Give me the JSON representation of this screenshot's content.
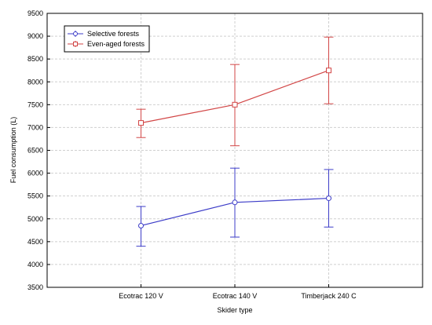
{
  "chart_data": {
    "type": "line",
    "title": "",
    "xlabel": "Skider type",
    "ylabel": "Fuel consumption (L)",
    "categories": [
      "Ecotrac 120 V",
      "Ecotrac 140 V",
      "Timberjack 240 C"
    ],
    "ylim": [
      3500,
      9500
    ],
    "yticks": [
      3500,
      4000,
      4500,
      5000,
      5500,
      6000,
      6500,
      7000,
      7500,
      8000,
      8500,
      9000,
      9500
    ],
    "grid": true,
    "legend_position": "top-left",
    "series": [
      {
        "name": "Selective forests",
        "color": "#3c3cc8",
        "marker": "circle",
        "values": [
          4850,
          5360,
          5450
        ],
        "lower": [
          4400,
          4600,
          4820
        ],
        "upper": [
          5270,
          6110,
          6080
        ]
      },
      {
        "name": "Even-aged forests",
        "color": "#d24646",
        "marker": "square",
        "values": [
          7100,
          7500,
          8250
        ],
        "lower": [
          6780,
          6600,
          7520
        ],
        "upper": [
          7400,
          8380,
          8980
        ]
      }
    ]
  }
}
